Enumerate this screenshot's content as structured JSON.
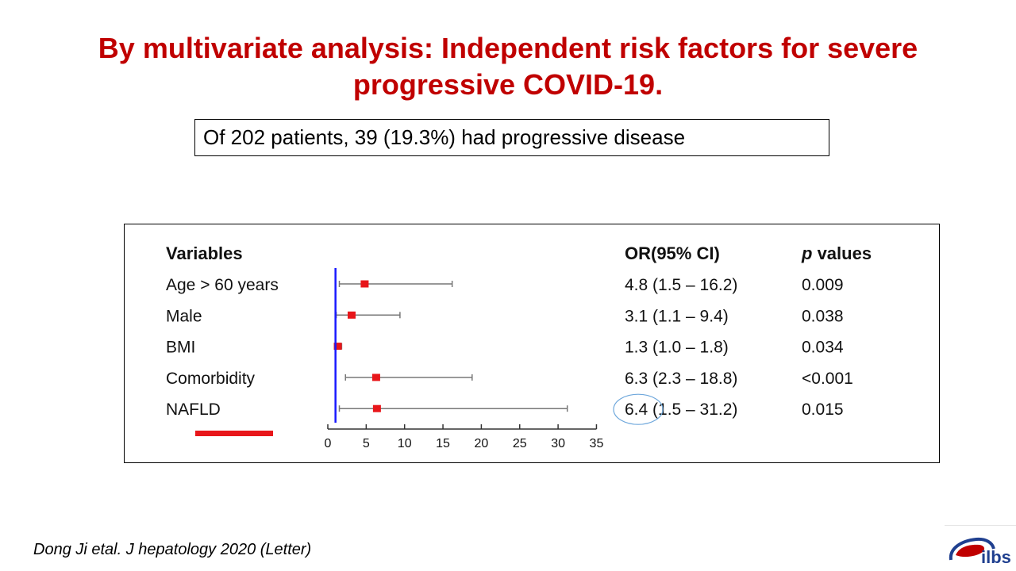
{
  "title": {
    "line1": "By multivariate analysis: Independent risk factors for severe",
    "line2": "progressive COVID-19."
  },
  "note": "Of 202 patients, 39 (19.3%) had progressive disease",
  "footer": "Dong Ji etal. J hepatology 2020 (Letter)",
  "logo_text": "ilbs",
  "colors": {
    "title": "#c00000",
    "marker": "#e8161a",
    "reference_line": "#1a1aff",
    "underline": "#e8161a",
    "circle": "#6fa8dc",
    "logo": "#1f3f8f"
  },
  "chart_data": {
    "type": "forest",
    "headers": {
      "variables": "Variables",
      "or": "OR(95% CI)",
      "p": "values",
      "p_italic": "p"
    },
    "rows": [
      {
        "variable": "Age > 60 years",
        "or": 4.8,
        "ci_low": 1.5,
        "ci_high": 16.2,
        "or_text": "4.8 (1.5 – 16.2)",
        "p": "0.009"
      },
      {
        "variable": "Male",
        "or": 3.1,
        "ci_low": 1.1,
        "ci_high": 9.4,
        "or_text": "3.1 (1.1 – 9.4)",
        "p": "0.038"
      },
      {
        "variable": "BMI",
        "or": 1.3,
        "ci_low": 1.0,
        "ci_high": 1.8,
        "or_text": "1.3 (1.0 – 1.8)",
        "p": "0.034"
      },
      {
        "variable": "Comorbidity",
        "or": 6.3,
        "ci_low": 2.3,
        "ci_high": 18.8,
        "or_text": "6.3 (2.3 – 18.8)",
        "p": "<0.001"
      },
      {
        "variable": "NAFLD",
        "or": 6.4,
        "ci_low": 1.5,
        "ci_high": 31.2,
        "or_text": "6.4 (1.5 – 31.2)",
        "p": "0.015"
      }
    ],
    "xlim": [
      0,
      35
    ],
    "xticks": [
      0,
      5,
      10,
      15,
      20,
      25,
      30,
      35
    ],
    "reference_line": 1,
    "highlighted_row": "NAFLD"
  }
}
